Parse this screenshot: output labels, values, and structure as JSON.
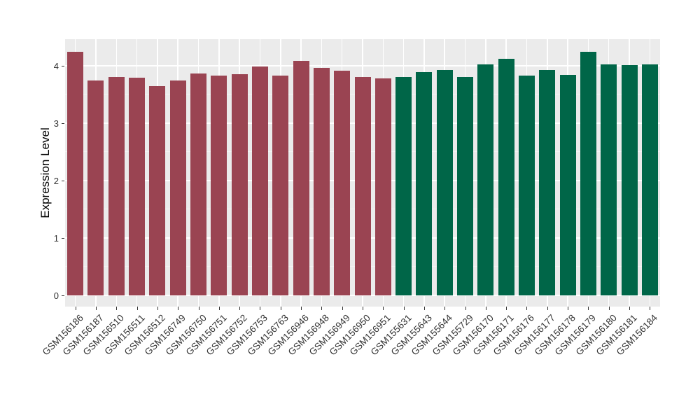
{
  "chart_data": {
    "type": "bar",
    "title": "",
    "xlabel": "",
    "ylabel": "Expression Level",
    "ylim": [
      -0.2,
      4.46
    ],
    "yticks": [
      "0",
      "1",
      "2",
      "3",
      "4"
    ],
    "yticks_minor": [
      0.5,
      1.5,
      2.5,
      3.5
    ],
    "grid": "white major and minor horizontal gridlines and vertical gridlines at each category on gray panel",
    "legend_position": "none",
    "categories": [
      "GSM156186",
      "GSM156187",
      "GSM156510",
      "GSM156511",
      "GSM156512",
      "GSM156749",
      "GSM156750",
      "GSM156751",
      "GSM156752",
      "GSM156753",
      "GSM156763",
      "GSM156946",
      "GSM156948",
      "GSM156949",
      "GSM156950",
      "GSM156951",
      "GSM155631",
      "GSM155643",
      "GSM155644",
      "GSM155729",
      "GSM156170",
      "GSM156171",
      "GSM156176",
      "GSM156177",
      "GSM156178",
      "GSM156179",
      "GSM156180",
      "GSM156181",
      "GSM156184"
    ],
    "values": [
      4.24,
      3.74,
      3.8,
      3.79,
      3.65,
      3.75,
      3.87,
      3.83,
      3.85,
      3.99,
      3.83,
      4.09,
      3.96,
      3.91,
      3.81,
      3.78,
      3.81,
      3.89,
      3.93,
      3.8,
      4.03,
      4.12,
      3.83,
      3.93,
      3.84,
      4.24,
      4.03,
      4.01,
      4.03
    ],
    "groups": [
      "group1",
      "group1",
      "group1",
      "group1",
      "group1",
      "group1",
      "group1",
      "group1",
      "group1",
      "group1",
      "group1",
      "group1",
      "group1",
      "group1",
      "group1",
      "group1",
      "group2",
      "group2",
      "group2",
      "group2",
      "group2",
      "group2",
      "group2",
      "group2",
      "group2",
      "group2",
      "group2",
      "group2",
      "group2"
    ],
    "group_colors": {
      "group1": "#9A4452",
      "group2": "#006648"
    },
    "panel_background": "#EBEBEB",
    "gridline_color": "#FFFFFF",
    "axis_text_color": "#333333"
  }
}
